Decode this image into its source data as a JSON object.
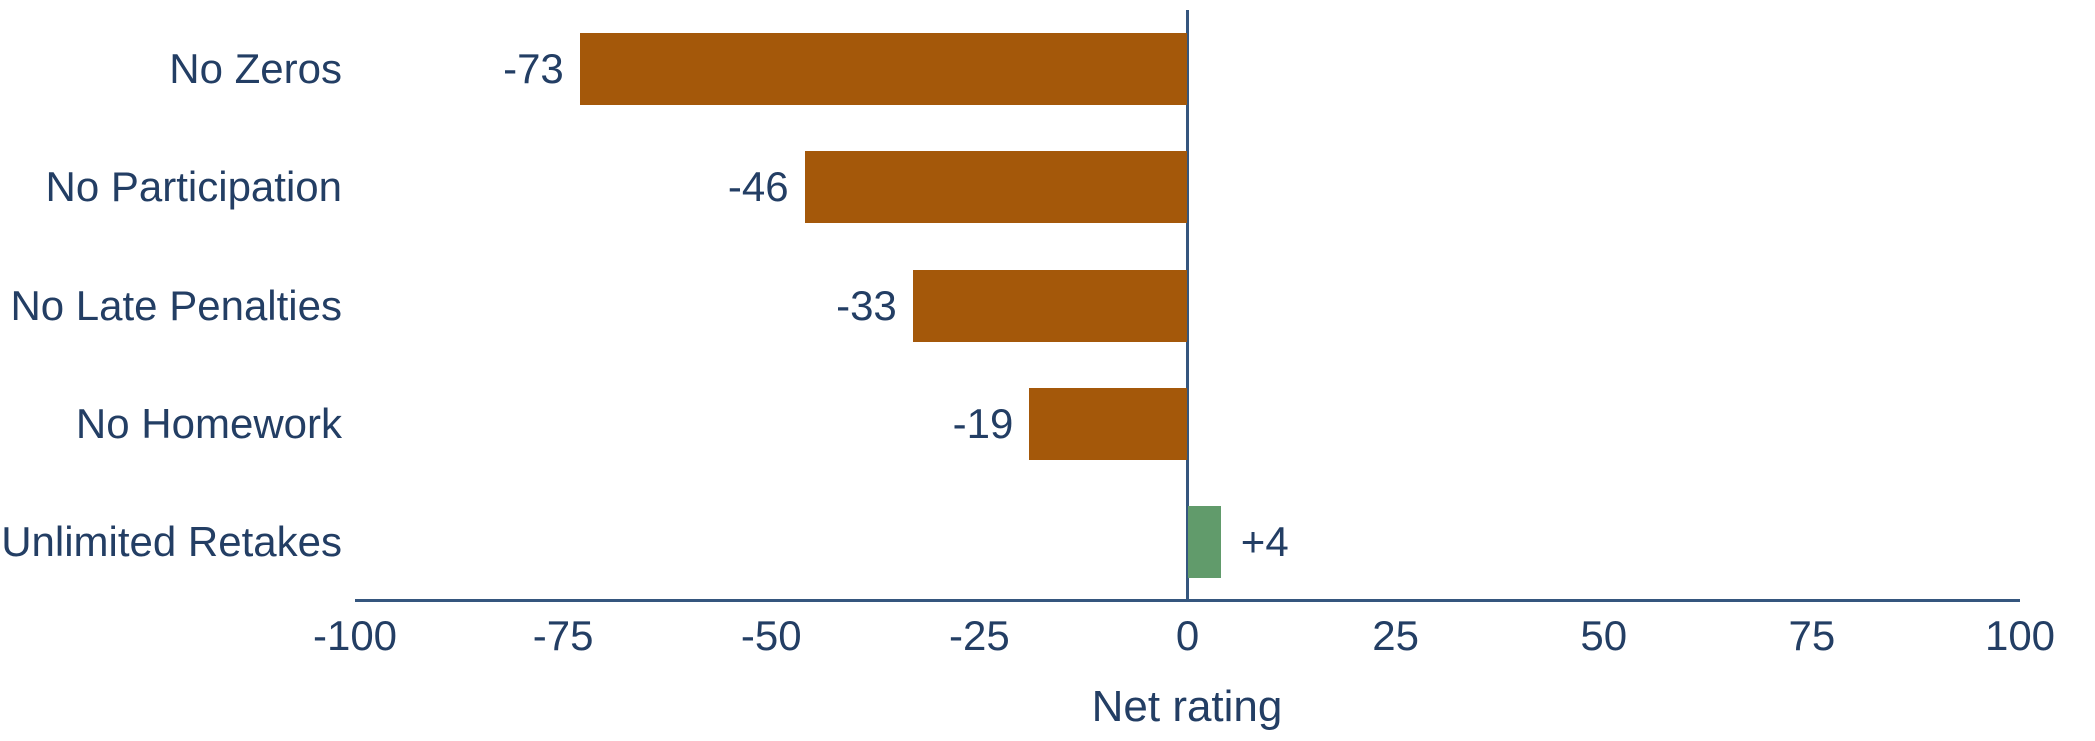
{
  "chart_data": {
    "type": "bar",
    "orientation": "horizontal",
    "categories": [
      "No Zeros",
      "No Participation",
      "No Late Penalties",
      "No Homework",
      "Unlimited Retakes"
    ],
    "values": [
      -73,
      -46,
      -33,
      -19,
      4
    ],
    "value_labels": [
      "-73",
      "-46",
      "-33",
      "-19",
      "+4"
    ],
    "xlabel": "Net rating",
    "xlim": [
      -100,
      100
    ],
    "x_ticks": [
      -100,
      -75,
      -50,
      -25,
      0,
      25,
      50,
      75,
      100
    ],
    "x_tick_labels": [
      "-100",
      "-75",
      "-50",
      "-25",
      "0",
      "25",
      "50",
      "75",
      "100"
    ],
    "grid": false,
    "legend": false,
    "colors": {
      "negative_bar": "#a4580a",
      "positive_bar": "#619b6b",
      "text": "#233e64",
      "axis_line": "#35567e",
      "background": "#ffffff"
    }
  }
}
